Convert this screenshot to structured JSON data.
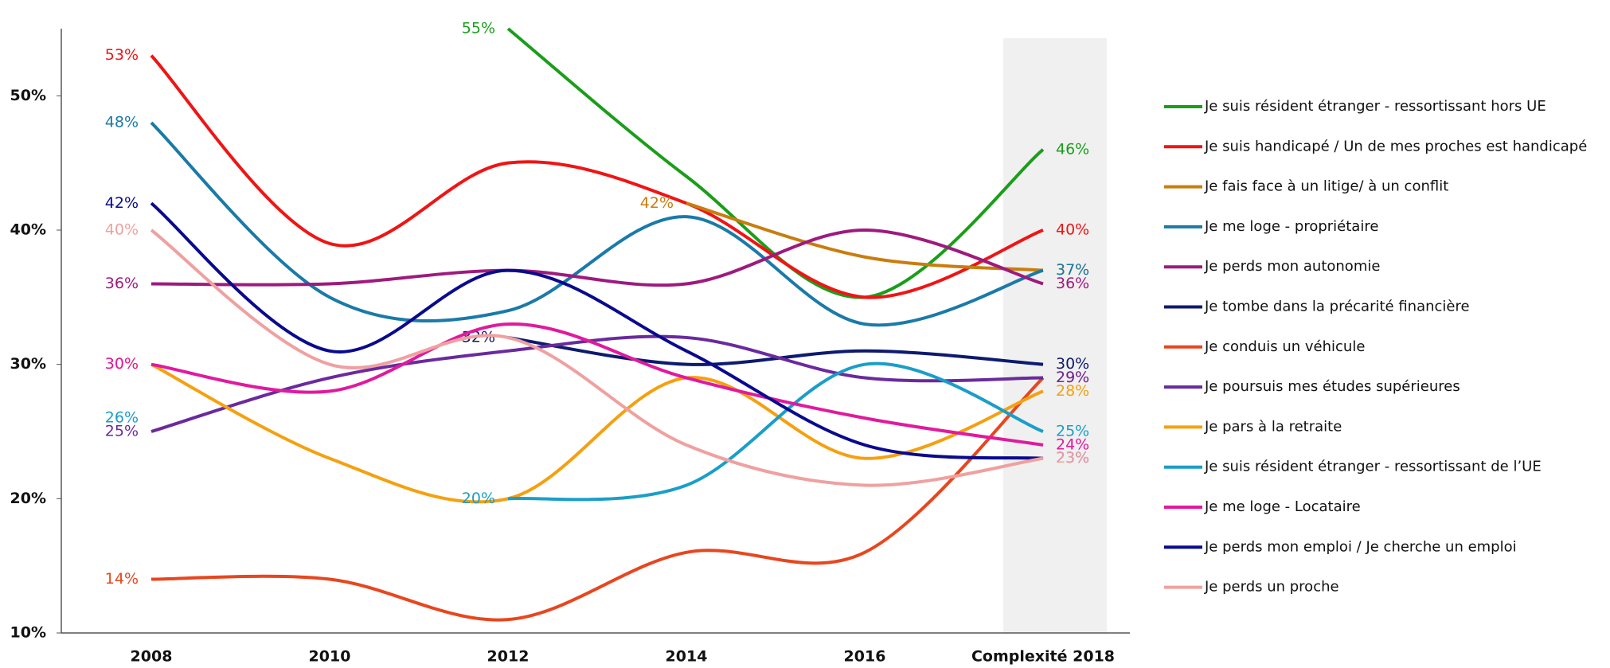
{
  "chart_data": {
    "type": "line",
    "categories": [
      "2008",
      "2010",
      "2012",
      "2014",
      "2016",
      "Complexité 2018"
    ],
    "ylim": [
      10,
      55
    ],
    "yticks": [
      {
        "value": 10,
        "label": "10%"
      },
      {
        "value": 20,
        "label": "20%"
      },
      {
        "value": 30,
        "label": "30%"
      },
      {
        "value": 40,
        "label": "40%"
      },
      {
        "value": 50,
        "label": "50%"
      }
    ],
    "series": [
      {
        "name": "Je suis résident étranger - ressortissant hors UE",
        "color": "#1a9e1a",
        "values": [
          null,
          null,
          55,
          44,
          35,
          46
        ],
        "value_labels": [
          null,
          null,
          "55%",
          null,
          null,
          "46%"
        ]
      },
      {
        "name": "Je suis handicapé / Un de mes proches est handicapé",
        "color": "#f01414",
        "values": [
          53,
          39,
          45,
          42,
          35,
          40
        ],
        "value_labels": [
          "53%",
          null,
          null,
          null,
          null,
          "40%"
        ]
      },
      {
        "name": "Je fais face à un litige/ à un conflit",
        "color": "#c87d0e",
        "values": [
          null,
          null,
          null,
          42,
          38,
          37
        ],
        "value_labels": [
          null,
          null,
          null,
          "42%",
          null,
          "37%"
        ]
      },
      {
        "name": "Je me loge - propriétaire",
        "color": "#1a7aa8",
        "values": [
          48,
          35,
          34,
          41,
          33,
          37
        ],
        "value_labels": [
          "48%",
          null,
          null,
          null,
          null,
          "37%"
        ]
      },
      {
        "name": "Je perds mon autonomie",
        "color": "#9e1a7e",
        "values": [
          36,
          36,
          37,
          36,
          40,
          36
        ],
        "value_labels": [
          "36%",
          null,
          null,
          null,
          null,
          "36%"
        ]
      },
      {
        "name": "Je tombe dans la précarité financière",
        "color": "#0e1a6e",
        "values": [
          null,
          null,
          32,
          30,
          31,
          30
        ],
        "value_labels": [
          null,
          null,
          "32%",
          null,
          null,
          "30%"
        ]
      },
      {
        "name": "Je conduis un véhicule",
        "color": "#e8461e",
        "values": [
          14,
          14,
          11,
          16,
          16,
          29
        ],
        "value_labels": [
          "14%",
          null,
          null,
          null,
          null,
          "29%"
        ]
      },
      {
        "name": "Je poursuis mes études supérieures",
        "color": "#6a2a9e",
        "values": [
          25,
          29,
          31,
          32,
          29,
          29
        ],
        "value_labels": [
          "25%",
          null,
          null,
          null,
          null,
          "29%"
        ]
      },
      {
        "name": "Je pars à la retraite",
        "color": "#f5a010",
        "values": [
          30,
          23,
          20,
          29,
          23,
          28
        ],
        "value_labels": [
          "30%",
          null,
          null,
          null,
          null,
          "28%"
        ]
      },
      {
        "name": "Je suis résident étranger - ressortissant de l’UE",
        "color": "#1a9ec8",
        "values": [
          null,
          null,
          20,
          21,
          30,
          25
        ],
        "value_labels": [
          null,
          null,
          "20%",
          null,
          null,
          "25%"
        ]
      },
      {
        "name": "Je me loge - Locataire",
        "color": "#e01a9e",
        "values": [
          30,
          28,
          33,
          29,
          26,
          24
        ],
        "value_labels": [
          "30%",
          null,
          null,
          null,
          null,
          "24%"
        ]
      },
      {
        "name": "Je perds mon emploi / Je cherche un emploi",
        "color": "#0a0a8e",
        "values": [
          42,
          31,
          37,
          31,
          24,
          23
        ],
        "value_labels": [
          "42%",
          null,
          null,
          null,
          null,
          "23%"
        ]
      },
      {
        "name": "Je perds un proche",
        "color": "#f0a0a0",
        "values": [
          40,
          30,
          32,
          24,
          21,
          23
        ],
        "value_labels": [
          "40%",
          null,
          null,
          null,
          null,
          "23%"
        ]
      }
    ],
    "annotations": [
      {
        "text": "26%",
        "x": "2008",
        "y": 26,
        "color": "#1a9ec8"
      }
    ]
  }
}
